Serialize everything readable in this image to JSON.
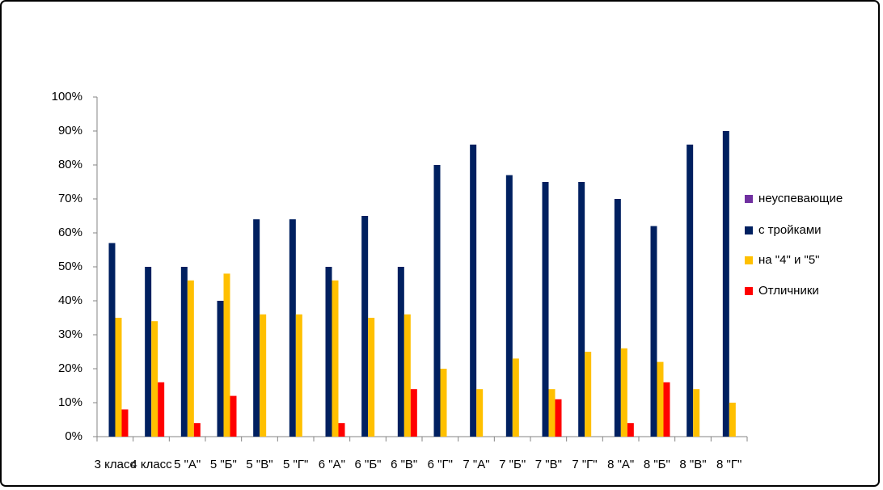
{
  "chart_data": {
    "type": "bar",
    "categories": [
      "3 класс",
      "4 класс",
      "5 \"А\"",
      "5 \"Б\"",
      "5 \"В\"",
      "5 \"Г\"",
      "6 \"А\"",
      "6 \"Б\"",
      "6 \"В\"",
      "6 \"Г\"",
      "7 \"А\"",
      "7 \"Б\"",
      "7 \"В\"",
      "7 \"Г\"",
      "8 \"А\"",
      "8 \"Б\"",
      "8 \"В\"",
      "8 \"Г\""
    ],
    "series": [
      {
        "name": "неуспевающие",
        "color": "#7030a0",
        "values": [
          0,
          0,
          0,
          0,
          0,
          0,
          0,
          0,
          0,
          0,
          0,
          0,
          0,
          0,
          0,
          0,
          0,
          0
        ]
      },
      {
        "name": "с тройками",
        "color": "#002060",
        "values": [
          57,
          50,
          50,
          40,
          64,
          64,
          50,
          65,
          50,
          80,
          86,
          77,
          75,
          75,
          70,
          62,
          86,
          90
        ]
      },
      {
        "name": "на \"4\" и \"5\"",
        "color": "#ffc000",
        "values": [
          35,
          34,
          46,
          48,
          36,
          36,
          46,
          35,
          36,
          20,
          14,
          23,
          14,
          25,
          26,
          22,
          14,
          10
        ]
      },
      {
        "name": "Отличники",
        "color": "#ff0000",
        "values": [
          8,
          16,
          4,
          12,
          0,
          0,
          4,
          0,
          14,
          0,
          0,
          0,
          11,
          0,
          4,
          16,
          0,
          0
        ]
      }
    ],
    "ylim": [
      0,
      100
    ],
    "yticks": [
      {
        "value": 0,
        "label": "0%"
      },
      {
        "value": 10,
        "label": "10%"
      },
      {
        "value": 20,
        "label": "20%"
      },
      {
        "value": 30,
        "label": "30%"
      },
      {
        "value": 40,
        "label": "40%"
      },
      {
        "value": 50,
        "label": "50%"
      },
      {
        "value": 60,
        "label": "60%"
      },
      {
        "value": 70,
        "label": "70%"
      },
      {
        "value": 80,
        "label": "80%"
      },
      {
        "value": 90,
        "label": "90%"
      },
      {
        "value": 100,
        "label": "100%"
      }
    ],
    "grid": false,
    "legend": "right"
  }
}
